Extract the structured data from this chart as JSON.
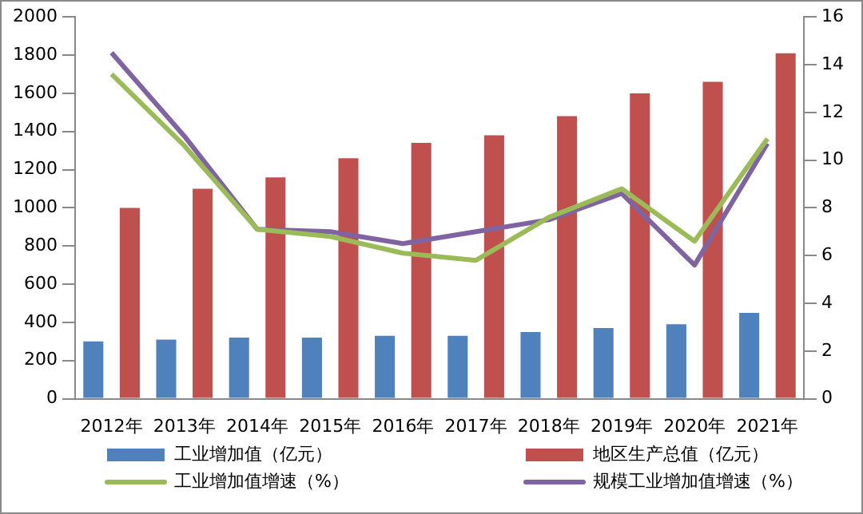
{
  "chart_data": {
    "type": "bar",
    "categories": [
      "2012年",
      "2013年",
      "2014年",
      "2015年",
      "2016年",
      "2017年",
      "2018年",
      "2019年",
      "2020年",
      "2021年"
    ],
    "series": [
      {
        "name": "工业增加值（亿元）",
        "color": "#4f81bd",
        "values": [
          300,
          310,
          320,
          320,
          330,
          330,
          350,
          370,
          390,
          450
        ]
      },
      {
        "name": "地区生产总值（亿元）",
        "color": "#c0504d",
        "values": [
          1000,
          1100,
          1160,
          1260,
          1340,
          1380,
          1480,
          1600,
          1660,
          1810
        ]
      },
      {
        "name": "工业增加值增速（%）",
        "type": "line",
        "axis": "y2",
        "color": "#9bbb59",
        "values": [
          13.6,
          10.6,
          7.1,
          6.8,
          6.1,
          5.8,
          7.6,
          8.8,
          6.6,
          10.9
        ]
      },
      {
        "name": "规模工业增加值增速（%）",
        "type": "line",
        "axis": "y2",
        "color": "#8064a2",
        "values": [
          14.5,
          11.0,
          7.1,
          7.0,
          6.5,
          7.0,
          7.5,
          8.6,
          5.6,
          10.7
        ]
      }
    ],
    "ylim": [
      0,
      2000
    ],
    "yticks": [
      0,
      200,
      400,
      600,
      800,
      1000,
      1200,
      1400,
      1600,
      1800,
      2000
    ],
    "y2lim": [
      0,
      16
    ],
    "y2ticks": [
      0,
      2,
      4,
      6,
      8,
      10,
      12,
      14,
      16
    ],
    "grid": false,
    "legend": "bottom",
    "marker": "none",
    "line_style": "solid"
  }
}
